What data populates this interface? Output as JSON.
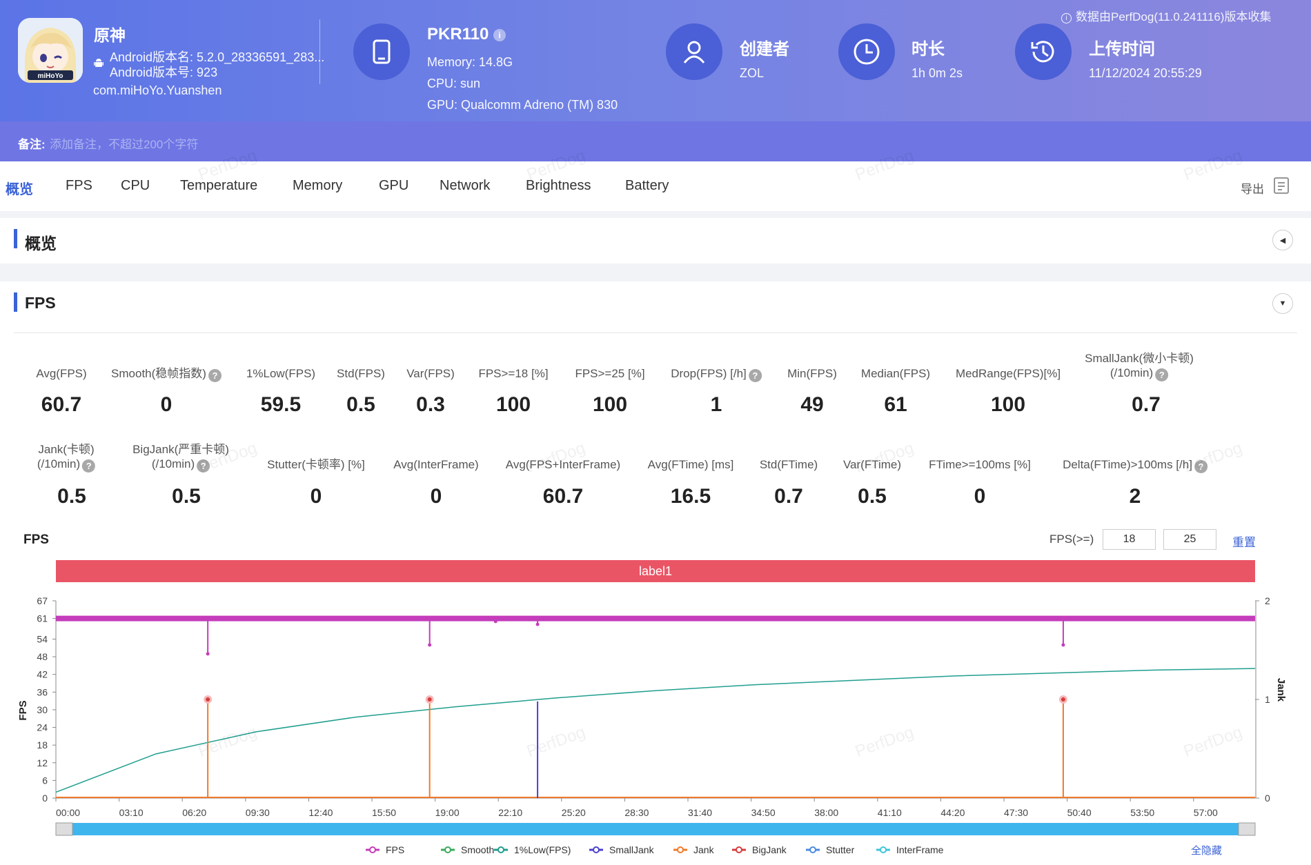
{
  "app": {
    "name": "原神",
    "version_name": "Android版本名: 5.2.0_28336591_283...",
    "version_code": "Android版本号: 923",
    "package": "com.miHoYo.Yuanshen",
    "logo_text": "miHoYo"
  },
  "device": {
    "model": "PKR110",
    "memory": "Memory: 14.8G",
    "cpu": "CPU: sun",
    "gpu": "GPU: Qualcomm Adreno (TM) 830"
  },
  "creator": {
    "label": "创建者",
    "value": "ZOL"
  },
  "duration": {
    "label": "时长",
    "value": "1h 0m 2s"
  },
  "upload": {
    "label": "上传时间",
    "value": "11/12/2024 20:55:29"
  },
  "source_note": "数据由PerfDog(11.0.241116)版本收集",
  "remark": {
    "label": "备注:",
    "placeholder": "添加备注，不超过200个字符"
  },
  "tabs": [
    "概览",
    "FPS",
    "CPU",
    "Temperature",
    "Memory",
    "GPU",
    "Network",
    "Brightness",
    "Battery"
  ],
  "export_label": "导出",
  "overview_title": "概览",
  "fps_section_title": "FPS",
  "metrics_row1": [
    {
      "label": "Avg(FPS)",
      "value": "60.7"
    },
    {
      "label": "Smooth(稳帧指数)",
      "value": "0",
      "help": true
    },
    {
      "label": "1%Low(FPS)",
      "value": "59.5"
    },
    {
      "label": "Std(FPS)",
      "value": "0.5"
    },
    {
      "label": "Var(FPS)",
      "value": "0.3"
    },
    {
      "label": "FPS>=18 [%]",
      "value": "100"
    },
    {
      "label": "FPS>=25 [%]",
      "value": "100"
    },
    {
      "label": "Drop(FPS) [/h]",
      "value": "1",
      "help": true
    },
    {
      "label": "Min(FPS)",
      "value": "49"
    },
    {
      "label": "Median(FPS)",
      "value": "61"
    },
    {
      "label": "MedRange(FPS)[%]",
      "value": "100"
    },
    {
      "label": "SmallJank(微小卡顿)",
      "label2": "(/10min)",
      "value": "0.7",
      "help": true
    }
  ],
  "metrics_row2": [
    {
      "label": "Jank(卡顿)",
      "label2": "(/10min)",
      "value": "0.5",
      "help": true
    },
    {
      "label": "BigJank(严重卡顿)",
      "label2": "(/10min)",
      "value": "0.5",
      "help": true
    },
    {
      "label": "Stutter(卡顿率) [%]",
      "value": "0"
    },
    {
      "label": "Avg(InterFrame)",
      "value": "0"
    },
    {
      "label": "Avg(FPS+InterFrame)",
      "value": "60.7"
    },
    {
      "label": "Avg(FTime) [ms]",
      "value": "16.5"
    },
    {
      "label": "Std(FTime)",
      "value": "0.7"
    },
    {
      "label": "Var(FTime)",
      "value": "0.5"
    },
    {
      "label": "FTime>=100ms [%]",
      "value": "0"
    },
    {
      "label": "Delta(FTime)>100ms [/h]",
      "value": "2",
      "help": true
    }
  ],
  "chart_controls": {
    "title": "FPS",
    "threshold_label": "FPS(>=)",
    "threshold_1": "18",
    "threshold_2": "25",
    "reset_label": "重置",
    "label_bar": "label1",
    "hide_all": "全隐藏"
  },
  "watermark": "PerfDog",
  "colors": {
    "accent": "#3b63d6",
    "fps": "#c43dbb",
    "smooth": "#3aab5b",
    "low1": "#1f9e8e",
    "smalljank": "#4b3fd1",
    "jank": "#f07a2a",
    "bigjank": "#d63c3c",
    "stutter": "#4a8be0",
    "interframe": "#3dc5d8",
    "label_bar": "#ea5566"
  },
  "chart_data": {
    "type": "line",
    "xlabel": "",
    "ylabel": "FPS",
    "y2label": "Jank",
    "ylim": [
      0,
      67
    ],
    "y2lim": [
      0,
      2
    ],
    "yticks": [
      "0",
      "6",
      "12",
      "18",
      "24",
      "30",
      "36",
      "42",
      "48",
      "54",
      "61",
      "67"
    ],
    "y2ticks": [
      "0",
      "1",
      "2"
    ],
    "xticks": [
      "00:00",
      "03:10",
      "06:20",
      "09:30",
      "12:40",
      "15:50",
      "19:00",
      "22:10",
      "25:20",
      "28:30",
      "31:40",
      "34:50",
      "38:00",
      "41:10",
      "44:20",
      "47:30",
      "50:40",
      "53:50",
      "57:00"
    ],
    "duration_minutes": 60,
    "legend_position": "bottom",
    "series": [
      {
        "name": "FPS",
        "base": 61,
        "dips": [
          {
            "x": 7.6,
            "y": 49
          },
          {
            "x": 18.7,
            "y": 52
          },
          {
            "x": 22.0,
            "y": 60
          },
          {
            "x": 24.1,
            "y": 59
          },
          {
            "x": 50.4,
            "y": 52
          }
        ]
      },
      {
        "name": "Smooth",
        "values_x": [
          0,
          60
        ],
        "values_y": [
          0,
          0
        ]
      },
      {
        "name": "1%Low(FPS)",
        "x": [
          0,
          5,
          10,
          15,
          20,
          25,
          30,
          35,
          40,
          45,
          50,
          55,
          60
        ],
        "y": [
          2,
          15,
          22.5,
          27.5,
          31,
          34,
          36.5,
          38.5,
          40,
          41.5,
          42.5,
          43.5,
          44
        ]
      },
      {
        "name": "SmallJank",
        "events_x": [
          24.1
        ],
        "events_y": [
          0.98
        ]
      },
      {
        "name": "Jank",
        "events_x": [
          7.6,
          18.7,
          50.4
        ],
        "events_y": [
          1.0,
          1.0,
          1.0
        ]
      },
      {
        "name": "BigJank",
        "events_x": [
          7.6,
          18.7,
          50.4
        ],
        "events_y": [
          1.0,
          1.0,
          1.0
        ]
      },
      {
        "name": "Stutter",
        "values_x": [
          0,
          60
        ],
        "values_y": [
          0,
          0
        ]
      },
      {
        "name": "InterFrame",
        "values_x": [
          0,
          60
        ],
        "values_y": [
          0,
          0
        ]
      }
    ]
  }
}
